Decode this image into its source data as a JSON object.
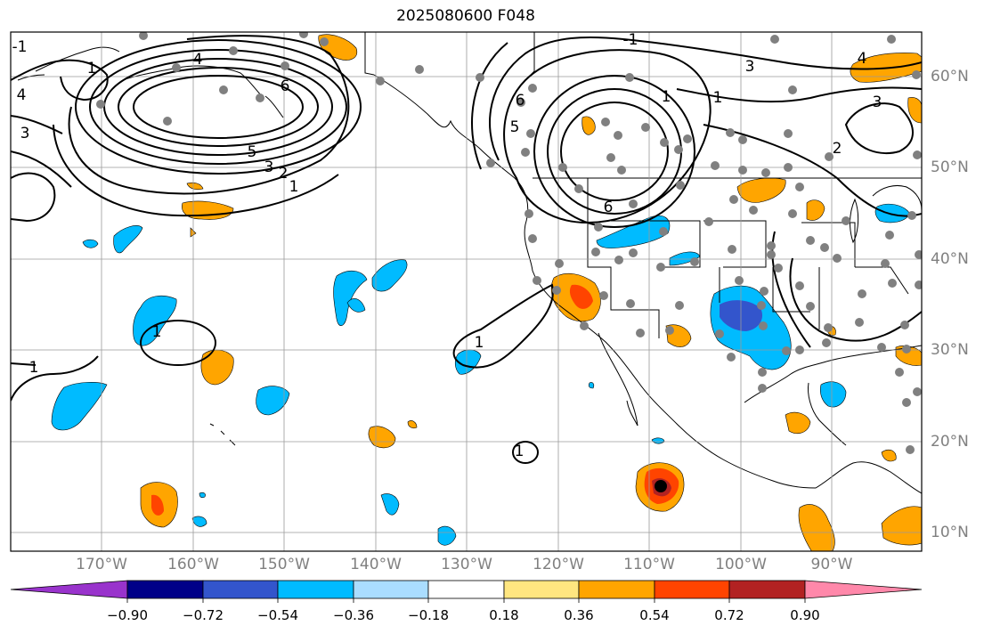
{
  "title": "2025080600 F048",
  "map": {
    "lat_labels": [
      "60°N",
      "50°N",
      "40°N",
      "30°N",
      "20°N",
      "10°N"
    ],
    "lon_labels": [
      "170°W",
      "160°W",
      "150°W",
      "140°W",
      "130°W",
      "120°W",
      "110°W",
      "100°W",
      "90°W"
    ],
    "contour_labels": [
      "1",
      "4",
      "6",
      "5",
      "3",
      "2",
      "1",
      "4",
      "3",
      "-1",
      "5",
      "6",
      "1",
      "3",
      "4",
      "3",
      "2",
      "-1",
      "1",
      "6",
      "1",
      "1",
      "1",
      "1"
    ]
  },
  "colorbar": {
    "ticks": [
      "−0.90",
      "−0.72",
      "−0.54",
      "−0.36",
      "−0.18",
      "0.18",
      "0.36",
      "0.54",
      "0.72",
      "0.90"
    ],
    "colors": [
      "#9933cc",
      "#000088",
      "#3355cc",
      "#00bbff",
      "#aaddff",
      "#ffffff",
      "#ffe680",
      "#ffa500",
      "#ff4400",
      "#b22222",
      "#ff88aa"
    ]
  }
}
